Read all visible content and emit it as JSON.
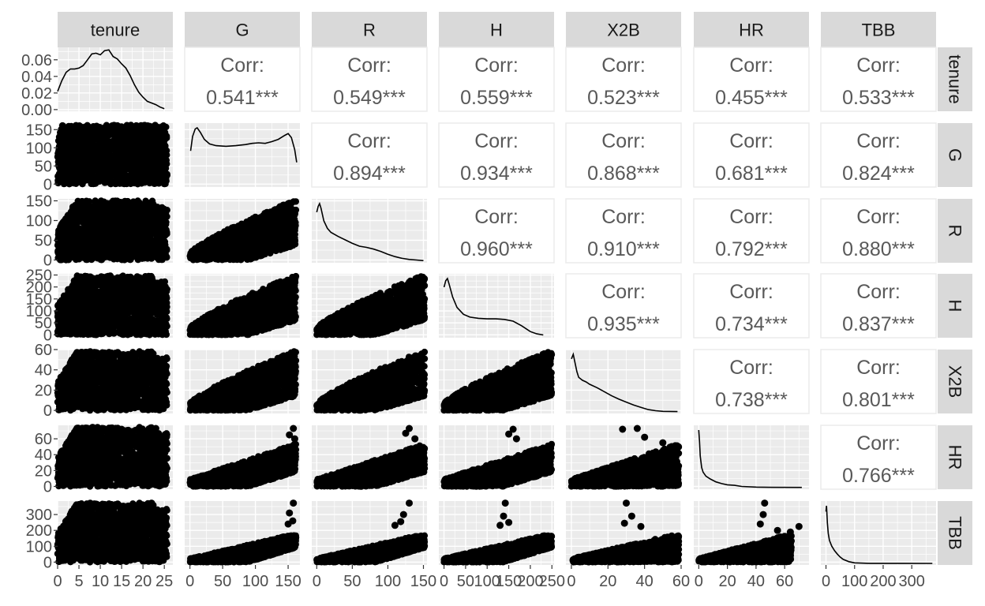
{
  "chart_data": {
    "type": "scatter-matrix",
    "title": "",
    "variables": [
      "tenure",
      "G",
      "R",
      "H",
      "X2B",
      "HR",
      "TBB"
    ],
    "strip_bg": "#d9d9d9",
    "panel_bg": "#ebebeb",
    "text_color": "#595959",
    "mark_color": "#000000",
    "correlation_label": "Corr:",
    "correlations": [
      {
        "row": "tenure",
        "col": "G",
        "text": "0.541***"
      },
      {
        "row": "tenure",
        "col": "R",
        "text": "0.549***"
      },
      {
        "row": "tenure",
        "col": "H",
        "text": "0.559***"
      },
      {
        "row": "tenure",
        "col": "X2B",
        "text": "0.523***"
      },
      {
        "row": "tenure",
        "col": "HR",
        "text": "0.455***"
      },
      {
        "row": "tenure",
        "col": "TBB",
        "text": "0.533***"
      },
      {
        "row": "G",
        "col": "R",
        "text": "0.894***"
      },
      {
        "row": "G",
        "col": "H",
        "text": "0.934***"
      },
      {
        "row": "G",
        "col": "X2B",
        "text": "0.868***"
      },
      {
        "row": "G",
        "col": "HR",
        "text": "0.681***"
      },
      {
        "row": "G",
        "col": "TBB",
        "text": "0.824***"
      },
      {
        "row": "R",
        "col": "H",
        "text": "0.960***"
      },
      {
        "row": "R",
        "col": "X2B",
        "text": "0.910***"
      },
      {
        "row": "R",
        "col": "HR",
        "text": "0.792***"
      },
      {
        "row": "R",
        "col": "TBB",
        "text": "0.880***"
      },
      {
        "row": "H",
        "col": "X2B",
        "text": "0.935***"
      },
      {
        "row": "H",
        "col": "HR",
        "text": "0.734***"
      },
      {
        "row": "H",
        "col": "TBB",
        "text": "0.837***"
      },
      {
        "row": "X2B",
        "col": "HR",
        "text": "0.738***"
      },
      {
        "row": "X2B",
        "col": "TBB",
        "text": "0.801***"
      },
      {
        "row": "HR",
        "col": "TBB",
        "text": "0.766***"
      }
    ],
    "x_axis": [
      {
        "variable": "tenure",
        "range": [
          0,
          27
        ],
        "ticks": [
          "0",
          "5",
          "10",
          "15",
          "20",
          "25"
        ],
        "tick_values": [
          0,
          5,
          10,
          15,
          20,
          25
        ]
      },
      {
        "variable": "G",
        "range": [
          -8,
          168
        ],
        "ticks": [
          "0",
          "50",
          "100",
          "150"
        ],
        "tick_values": [
          0,
          50,
          100,
          150
        ]
      },
      {
        "variable": "R",
        "range": [
          -7,
          155
        ],
        "ticks": [
          "0",
          "50",
          "100",
          "150"
        ],
        "tick_values": [
          0,
          50,
          100,
          150
        ]
      },
      {
        "variable": "H",
        "range": [
          -12,
          255
        ],
        "ticks": [
          "0",
          "50",
          "100",
          "150",
          "200",
          "250"
        ],
        "tick_values": [
          0,
          50,
          100,
          150,
          200,
          250
        ]
      },
      {
        "variable": "X2B",
        "range": [
          -3,
          60
        ],
        "ticks": [
          "0",
          "20",
          "40",
          "60"
        ],
        "tick_values": [
          0,
          20,
          40,
          60
        ]
      },
      {
        "variable": "HR",
        "range": [
          -3.5,
          77
        ],
        "ticks": [
          "0",
          "20",
          "40",
          "60"
        ],
        "tick_values": [
          0,
          20,
          40,
          60
        ]
      },
      {
        "variable": "TBB",
        "range": [
          -18,
          385
        ],
        "ticks": [
          "0",
          "100",
          "200",
          "300"
        ],
        "tick_values": [
          0,
          100,
          200,
          300
        ]
      }
    ],
    "y_axis": [
      {
        "variable": "tenure",
        "range": [
          -0.002,
          0.075
        ],
        "ticks": [
          "0.00",
          "0.02",
          "0.04",
          "0.06"
        ],
        "tick_values": [
          0,
          0.02,
          0.04,
          0.06
        ]
      },
      {
        "variable": "G",
        "range": [
          -8,
          168
        ],
        "ticks": [
          "0",
          "50",
          "100",
          "150"
        ],
        "tick_values": [
          0,
          50,
          100,
          150
        ]
      },
      {
        "variable": "R",
        "range": [
          -7,
          155
        ],
        "ticks": [
          "0",
          "50",
          "100",
          "150"
        ],
        "tick_values": [
          0,
          50,
          100,
          150
        ]
      },
      {
        "variable": "H",
        "range": [
          -12,
          255
        ],
        "ticks": [
          "0",
          "50",
          "100",
          "150",
          "200",
          "250"
        ],
        "tick_values": [
          0,
          50,
          100,
          150,
          200,
          250
        ]
      },
      {
        "variable": "X2B",
        "range": [
          -3,
          60
        ],
        "ticks": [
          "0",
          "20",
          "40",
          "60"
        ],
        "tick_values": [
          0,
          20,
          40,
          60
        ]
      },
      {
        "variable": "HR",
        "range": [
          -3.5,
          77
        ],
        "ticks": [
          "0",
          "20",
          "40",
          "60"
        ],
        "tick_values": [
          0,
          20,
          40,
          60
        ]
      },
      {
        "variable": "TBB",
        "range": [
          -18,
          385
        ],
        "ticks": [
          "0",
          "100",
          "200",
          "300"
        ],
        "tick_values": [
          0,
          100,
          200,
          300
        ]
      }
    ],
    "densities": [
      {
        "variable": "tenure",
        "points": [
          [
            0,
            0.022
          ],
          [
            1,
            0.035
          ],
          [
            2,
            0.045
          ],
          [
            3,
            0.049
          ],
          [
            4,
            0.049
          ],
          [
            5,
            0.05
          ],
          [
            6,
            0.053
          ],
          [
            7,
            0.06
          ],
          [
            8,
            0.067
          ],
          [
            9,
            0.068
          ],
          [
            10,
            0.066
          ],
          [
            11,
            0.071
          ],
          [
            12,
            0.072
          ],
          [
            13,
            0.064
          ],
          [
            14,
            0.061
          ],
          [
            15,
            0.055
          ],
          [
            16,
            0.05
          ],
          [
            17,
            0.041
          ],
          [
            18,
            0.03
          ],
          [
            19,
            0.021
          ],
          [
            20,
            0.015
          ],
          [
            21,
            0.01
          ],
          [
            22,
            0.008
          ],
          [
            23,
            0.006
          ],
          [
            24,
            0.003
          ],
          [
            25,
            0.001
          ]
        ]
      },
      {
        "variable": "G",
        "points": [
          [
            1,
            0.6
          ],
          [
            4,
            0.85
          ],
          [
            8,
            0.98
          ],
          [
            11,
            1.0
          ],
          [
            16,
            0.92
          ],
          [
            22,
            0.8
          ],
          [
            30,
            0.72
          ],
          [
            40,
            0.69
          ],
          [
            55,
            0.68
          ],
          [
            70,
            0.69
          ],
          [
            85,
            0.71
          ],
          [
            95,
            0.73
          ],
          [
            105,
            0.74
          ],
          [
            115,
            0.73
          ],
          [
            125,
            0.76
          ],
          [
            135,
            0.8
          ],
          [
            145,
            0.87
          ],
          [
            150,
            0.9
          ],
          [
            155,
            0.83
          ],
          [
            160,
            0.62
          ],
          [
            163,
            0.4
          ]
        ]
      },
      {
        "variable": "R",
        "points": [
          [
            0,
            0.85
          ],
          [
            2,
            0.95
          ],
          [
            4,
            1.0
          ],
          [
            6,
            0.92
          ],
          [
            10,
            0.7
          ],
          [
            15,
            0.57
          ],
          [
            20,
            0.5
          ],
          [
            30,
            0.43
          ],
          [
            40,
            0.37
          ],
          [
            50,
            0.31
          ],
          [
            60,
            0.26
          ],
          [
            70,
            0.24
          ],
          [
            80,
            0.21
          ],
          [
            90,
            0.17
          ],
          [
            100,
            0.12
          ],
          [
            110,
            0.08
          ],
          [
            120,
            0.05
          ],
          [
            130,
            0.03
          ],
          [
            140,
            0.02
          ],
          [
            150,
            0.01
          ]
        ]
      },
      {
        "variable": "H",
        "points": [
          [
            0,
            0.85
          ],
          [
            4,
            0.96
          ],
          [
            8,
            1.0
          ],
          [
            12,
            0.9
          ],
          [
            20,
            0.68
          ],
          [
            30,
            0.5
          ],
          [
            45,
            0.38
          ],
          [
            60,
            0.33
          ],
          [
            80,
            0.31
          ],
          [
            100,
            0.3
          ],
          [
            120,
            0.3
          ],
          [
            140,
            0.29
          ],
          [
            160,
            0.26
          ],
          [
            180,
            0.18
          ],
          [
            200,
            0.08
          ],
          [
            215,
            0.04
          ],
          [
            230,
            0.02
          ]
        ]
      },
      {
        "variable": "X2B",
        "points": [
          [
            0,
            0.92
          ],
          [
            1,
            1.0
          ],
          [
            2,
            0.85
          ],
          [
            3,
            0.7
          ],
          [
            4,
            0.6
          ],
          [
            6,
            0.55
          ],
          [
            8,
            0.52
          ],
          [
            10,
            0.48
          ],
          [
            14,
            0.42
          ],
          [
            18,
            0.35
          ],
          [
            22,
            0.28
          ],
          [
            26,
            0.22
          ],
          [
            30,
            0.17
          ],
          [
            34,
            0.12
          ],
          [
            38,
            0.08
          ],
          [
            42,
            0.04
          ],
          [
            46,
            0.02
          ],
          [
            50,
            0.01
          ],
          [
            58,
            0.005
          ]
        ]
      },
      {
        "variable": "HR",
        "points": [
          [
            0,
            1.0
          ],
          [
            0.5,
            0.8
          ],
          [
            1,
            0.55
          ],
          [
            2,
            0.35
          ],
          [
            3,
            0.27
          ],
          [
            5,
            0.2
          ],
          [
            8,
            0.15
          ],
          [
            12,
            0.1
          ],
          [
            16,
            0.07
          ],
          [
            20,
            0.05
          ],
          [
            25,
            0.04
          ],
          [
            30,
            0.02
          ],
          [
            40,
            0.01
          ],
          [
            50,
            0.005
          ],
          [
            72,
            0.004
          ]
        ]
      },
      {
        "variable": "TBB",
        "points": [
          [
            0,
            0.9
          ],
          [
            2,
            1.0
          ],
          [
            5,
            0.7
          ],
          [
            8,
            0.52
          ],
          [
            12,
            0.4
          ],
          [
            20,
            0.3
          ],
          [
            30,
            0.22
          ],
          [
            40,
            0.16
          ],
          [
            50,
            0.11
          ],
          [
            60,
            0.07
          ],
          [
            80,
            0.03
          ],
          [
            100,
            0.01
          ],
          [
            150,
            0.002
          ],
          [
            372,
            0.0
          ]
        ]
      }
    ]
  }
}
